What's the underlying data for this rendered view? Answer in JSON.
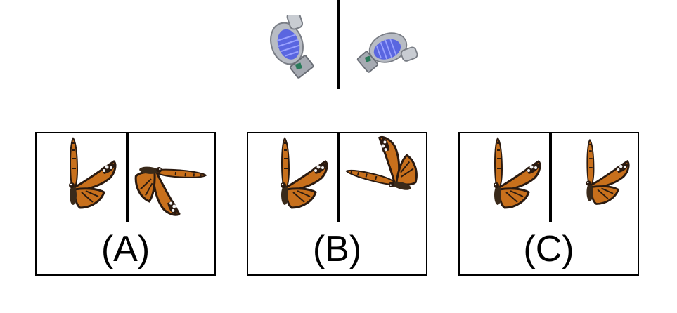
{
  "reference": {
    "left_object": "faucet-object-rotated-a",
    "right_object": "faucet-object-rotated-b"
  },
  "options": [
    {
      "label": "(A)"
    },
    {
      "label": "(B)"
    },
    {
      "label": "(C)"
    }
  ],
  "colors": {
    "wing_orange": "#c8701c",
    "wing_dark": "#2a1a10",
    "wing_white": "#f2f2f2",
    "object_gray": "#b8bcc4",
    "object_blue": "#5a66e0"
  }
}
